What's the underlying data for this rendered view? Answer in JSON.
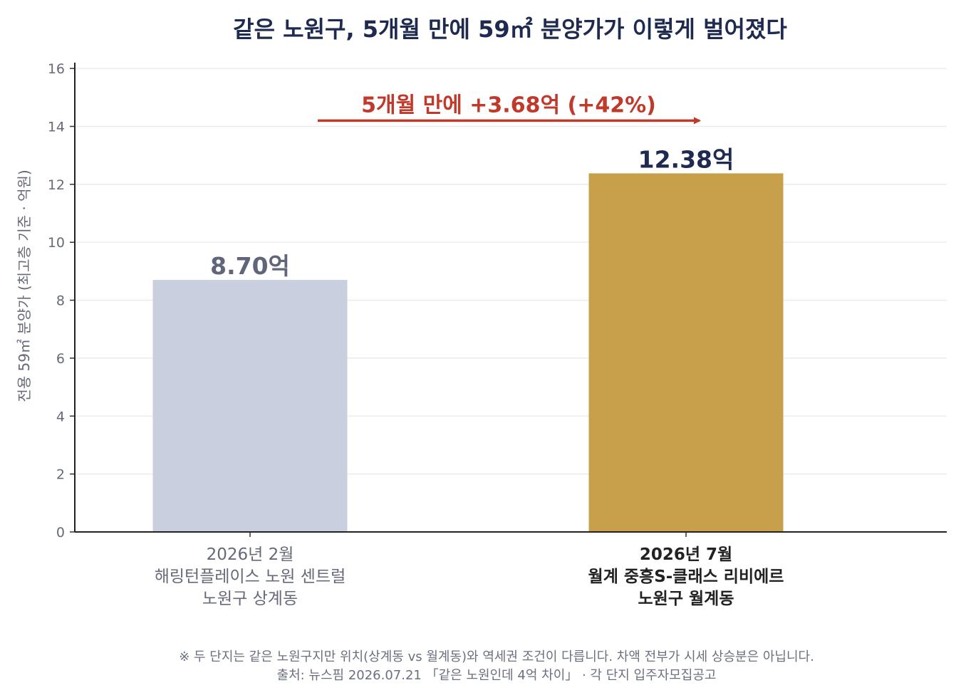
{
  "chart_data": {
    "type": "bar",
    "title": "같은 노원구, 5개월 만에 59㎡ 분양가가 이렇게 벌어졌다",
    "ylabel": "전용 59㎡ 분양가 (최고층 기준 · 억원)",
    "xlabel": "",
    "ylim": [
      0,
      16.2
    ],
    "yticks": [
      "0",
      "2",
      "4",
      "6",
      "8",
      "10",
      "12",
      "14",
      "16"
    ],
    "grid": true,
    "bars": [
      {
        "date": "2026년 2월",
        "name": "해링턴플레이스 노원 센트럴",
        "district": "노원구 상계동",
        "value": 8.7,
        "label": "8.70억",
        "color": "#cacfe0",
        "label_color": "#606579",
        "emphasis": false
      },
      {
        "date": "2026년 7월",
        "name": "월계 중흥S-클래스 리비에르",
        "district": "노원구 월계동",
        "value": 12.38,
        "label": "12.38억",
        "color": "#c8a04b",
        "label_color": "#1e2a4f",
        "emphasis": true
      }
    ],
    "annotation": {
      "text": "5개월 만에  +3.68억 (+42%)",
      "color": "#c0392b",
      "arrow_from": "2026년 2월",
      "arrow_to": "2026년 7월",
      "arrow_value": 14.2
    }
  },
  "footer": {
    "note": "※ 두 단지는 같은 노원구지만 위치(상계동 vs 월계동)와 역세권 조건이 다릅니다. 차액 전부가 시세 상승분은 아닙니다.",
    "source": "출처: 뉴스핌 2026.07.21 「같은 노원인데 4억 차이」 · 각 단지 입주자모집공고"
  }
}
